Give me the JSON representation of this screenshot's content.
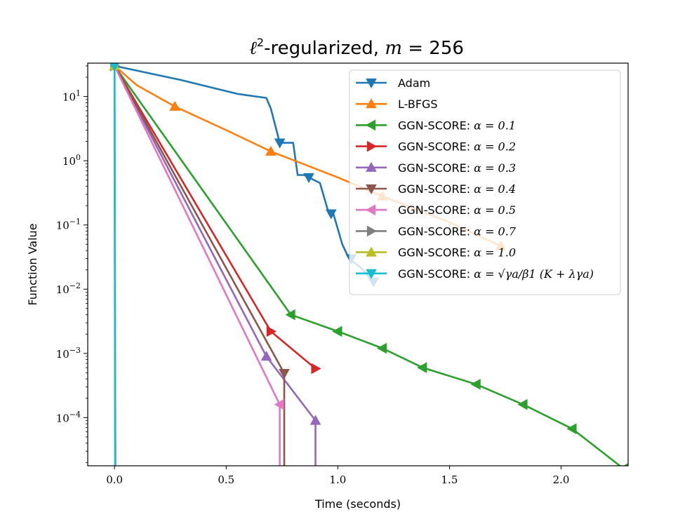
{
  "chart_data": {
    "type": "line",
    "title": "ℓ²-regularized, m = 256",
    "title_parts": [
      "ℓ",
      "2",
      "-regularized, ",
      "m",
      " = 256"
    ],
    "xlabel": "Time (seconds)",
    "ylabel": "Function Value",
    "xlim": [
      -0.12,
      2.3
    ],
    "ylim_log10": [
      -4.75,
      1.52
    ],
    "yscale": "log",
    "grid": false,
    "legend_position": "top-right",
    "x_ticks": [
      {
        "value": 0.0,
        "label": "0.0"
      },
      {
        "value": 0.5,
        "label": "0.5"
      },
      {
        "value": 1.0,
        "label": "1.0"
      },
      {
        "value": 1.5,
        "label": "1.5"
      },
      {
        "value": 2.0,
        "label": "2.0"
      }
    ],
    "y_ticks": [
      {
        "exp": 1,
        "base": "10",
        "sup": "1"
      },
      {
        "exp": 0,
        "base": "10",
        "sup": "0"
      },
      {
        "exp": -1,
        "base": "10",
        "sup": "−1"
      },
      {
        "exp": -2,
        "base": "10",
        "sup": "−2"
      },
      {
        "exp": -3,
        "base": "10",
        "sup": "−3"
      },
      {
        "exp": -4,
        "base": "10",
        "sup": "−4"
      }
    ],
    "series": [
      {
        "name": "Adam",
        "label": "Adam",
        "color": "#1f77b4",
        "marker": "triangle-down",
        "line": [
          [
            0.0,
            30
          ],
          [
            0.3,
            18
          ],
          [
            0.55,
            11
          ],
          [
            0.68,
            9.5
          ],
          [
            0.7,
            6.5
          ],
          [
            0.74,
            1.9
          ],
          [
            0.77,
            1.9
          ],
          [
            0.8,
            1.9
          ],
          [
            0.82,
            0.6
          ],
          [
            0.85,
            0.6
          ],
          [
            0.87,
            0.55
          ],
          [
            0.92,
            0.45
          ],
          [
            0.96,
            0.15
          ],
          [
            0.98,
            0.15
          ],
          [
            1.02,
            0.05
          ],
          [
            1.05,
            0.03
          ],
          [
            1.1,
            0.022
          ],
          [
            1.16,
            0.013
          ]
        ],
        "markers": [
          [
            0.74,
            1.9
          ],
          [
            0.87,
            0.55
          ],
          [
            0.97,
            0.15
          ],
          [
            1.06,
            0.03
          ],
          [
            1.16,
            0.013
          ]
        ]
      },
      {
        "name": "L-BFGS",
        "label": "L-BFGS",
        "color": "#ff7f0e",
        "marker": "triangle-up",
        "line": [
          [
            0.0,
            30
          ],
          [
            0.1,
            15
          ],
          [
            0.27,
            7
          ],
          [
            0.5,
            3
          ],
          [
            0.7,
            1.4
          ],
          [
            1.0,
            0.55
          ],
          [
            1.2,
            0.28
          ],
          [
            1.5,
            0.11
          ],
          [
            1.73,
            0.047
          ]
        ],
        "markers": [
          [
            0.27,
            7
          ],
          [
            0.7,
            1.4
          ],
          [
            1.2,
            0.28
          ],
          [
            1.73,
            0.047
          ]
        ]
      },
      {
        "name": "GGN-SCORE α=0.1",
        "label": "GGN-SCORE: ",
        "alpha_text": "α = 0.1",
        "color": "#2ca02c",
        "marker": "triangle-left",
        "line": [
          [
            0.0,
            30
          ],
          [
            0.79,
            0.004
          ],
          [
            1.0,
            0.0022
          ],
          [
            1.2,
            0.0012
          ],
          [
            1.38,
            0.0006
          ],
          [
            1.62,
            0.00033
          ],
          [
            1.83,
            0.00016
          ],
          [
            2.05,
            6.7e-05
          ],
          [
            2.28,
            1.6e-05
          ]
        ],
        "markers": [
          [
            0.79,
            0.004
          ],
          [
            1.0,
            0.0022
          ],
          [
            1.2,
            0.0012
          ],
          [
            1.38,
            0.0006
          ],
          [
            1.62,
            0.00033
          ],
          [
            1.83,
            0.00016
          ],
          [
            2.05,
            6.7e-05
          ],
          [
            2.28,
            1.6e-05
          ]
        ]
      },
      {
        "name": "GGN-SCORE α=0.2",
        "label": "GGN-SCORE: ",
        "alpha_text": "α = 0.2",
        "color": "#d62728",
        "marker": "triangle-right",
        "line": [
          [
            0.0,
            30
          ],
          [
            0.7,
            0.0022
          ],
          [
            0.9,
            0.00058
          ]
        ],
        "markers": [
          [
            0.7,
            0.0022
          ],
          [
            0.9,
            0.00058
          ]
        ]
      },
      {
        "name": "GGN-SCORE α=0.3",
        "label": "GGN-SCORE: ",
        "alpha_text": "α = 0.3",
        "color": "#9467bd",
        "marker": "triangle-up",
        "line": [
          [
            0.0,
            30
          ],
          [
            0.68,
            0.0009
          ],
          [
            0.9,
            9e-05
          ],
          [
            0.9,
            1e-06
          ]
        ],
        "markers": [
          [
            0.68,
            0.0009
          ],
          [
            0.9,
            9e-05
          ]
        ]
      },
      {
        "name": "GGN-SCORE α=0.4",
        "label": "GGN-SCORE: ",
        "alpha_text": "α = 0.4",
        "color": "#8c564b",
        "marker": "triangle-down",
        "line": [
          [
            0.0,
            30
          ],
          [
            0.76,
            0.00049
          ],
          [
            0.76,
            1e-06
          ]
        ],
        "markers": [
          [
            0.76,
            0.00049
          ]
        ]
      },
      {
        "name": "GGN-SCORE α=0.5",
        "label": "GGN-SCORE: ",
        "alpha_text": "α = 0.5",
        "color": "#e377c2",
        "marker": "triangle-left",
        "line": [
          [
            0.0,
            30
          ],
          [
            0.74,
            0.00016
          ],
          [
            0.74,
            1e-06
          ]
        ],
        "markers": [
          [
            0.74,
            0.00016
          ]
        ]
      },
      {
        "name": "GGN-SCORE α=0.7",
        "label": "GGN-SCORE: ",
        "alpha_text": "α = 0.7",
        "color": "#7f7f7f",
        "marker": "triangle-right",
        "line": [
          [
            0.0,
            30
          ],
          [
            0.005,
            1e-06
          ]
        ],
        "markers": [
          [
            0.0,
            30
          ]
        ]
      },
      {
        "name": "GGN-SCORE α=1.0",
        "label": "GGN-SCORE: ",
        "alpha_text": "α = 1.0",
        "color": "#bcbd22",
        "marker": "triangle-up",
        "line": [
          [
            0.0,
            30
          ],
          [
            0.004,
            1e-06
          ]
        ],
        "markers": [
          [
            0.0,
            30
          ]
        ]
      },
      {
        "name": "GGN-SCORE adaptive α",
        "label": "GGN-SCORE: ",
        "alpha_text": "α = √γa/β1 (K + λγa)",
        "color": "#17becf",
        "marker": "triangle-down",
        "line": [
          [
            0.0,
            30
          ],
          [
            0.003,
            1e-06
          ]
        ],
        "markers": [
          [
            0.0,
            30
          ]
        ]
      }
    ]
  }
}
